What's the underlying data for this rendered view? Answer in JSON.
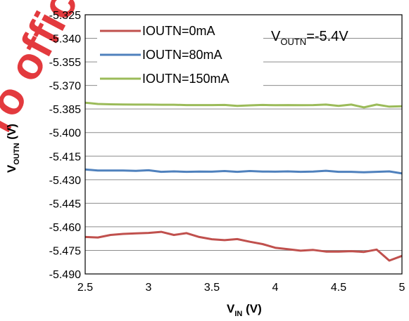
{
  "watermark": {
    "text": "Pro official"
  },
  "chart_data": {
    "type": "line",
    "xlabel": {
      "main": "V",
      "sub": "IN",
      "unit": " (V)"
    },
    "ylabel": {
      "main": "V",
      "sub": "OUTN",
      "unit": " (V)"
    },
    "xlim": [
      2.5,
      5
    ],
    "ylim": [
      -5.49,
      -5.325
    ],
    "xticks": [
      "2.5",
      "3",
      "3.5",
      "4",
      "4.5",
      "5"
    ],
    "yticks": [
      "-5.325",
      "-5.340",
      "-5.355",
      "-5.370",
      "-5.385",
      "-5.400",
      "-5.415",
      "-5.430",
      "-5.445",
      "-5.460",
      "-5.475",
      "-5.490"
    ],
    "grid": "horizontal",
    "legend_position": "top-left",
    "annotation": {
      "main": "V",
      "sub": "OUTN",
      "rest": "=-5.4V"
    },
    "series": [
      {
        "name": "IOUTN=0mA",
        "color": "#c0504d",
        "x": [
          2.5,
          2.6,
          2.7,
          2.8,
          2.9,
          3.0,
          3.1,
          3.2,
          3.3,
          3.4,
          3.5,
          3.6,
          3.7,
          3.8,
          3.9,
          4.0,
          4.1,
          4.2,
          4.3,
          4.4,
          4.5,
          4.6,
          4.7,
          4.8,
          4.9,
          5.0
        ],
        "y": [
          -5.4665,
          -5.4668,
          -5.4652,
          -5.4645,
          -5.4642,
          -5.4639,
          -5.4632,
          -5.4652,
          -5.464,
          -5.4665,
          -5.4679,
          -5.4685,
          -5.4678,
          -5.4695,
          -5.471,
          -5.4733,
          -5.4742,
          -5.4752,
          -5.4747,
          -5.4758,
          -5.4758,
          -5.4755,
          -5.476,
          -5.4745,
          -5.4815,
          -5.4785
        ]
      },
      {
        "name": "IOUTN=80mA",
        "color": "#4f81bd",
        "x": [
          2.5,
          2.6,
          2.7,
          2.8,
          2.9,
          3.0,
          3.1,
          3.2,
          3.3,
          3.4,
          3.5,
          3.6,
          3.7,
          3.8,
          3.9,
          4.0,
          4.1,
          4.2,
          4.3,
          4.4,
          4.5,
          4.6,
          4.7,
          4.8,
          4.9,
          5.0
        ],
        "y": [
          -5.4235,
          -5.4242,
          -5.4242,
          -5.4242,
          -5.4244,
          -5.424,
          -5.425,
          -5.4247,
          -5.425,
          -5.4248,
          -5.4249,
          -5.4245,
          -5.425,
          -5.4245,
          -5.4248,
          -5.4249,
          -5.4247,
          -5.425,
          -5.4248,
          -5.4243,
          -5.425,
          -5.425,
          -5.4253,
          -5.425,
          -5.4247,
          -5.426
        ]
      },
      {
        "name": "IOUTN=150mA",
        "color": "#9bbb59",
        "x": [
          2.5,
          2.6,
          2.7,
          2.8,
          2.9,
          3.0,
          3.1,
          3.2,
          3.3,
          3.4,
          3.5,
          3.6,
          3.7,
          3.8,
          3.9,
          4.0,
          4.1,
          4.2,
          4.3,
          4.4,
          4.5,
          4.6,
          4.7,
          4.8,
          4.9,
          5.0
        ],
        "y": [
          -5.381,
          -5.3818,
          -5.382,
          -5.3821,
          -5.3822,
          -5.3822,
          -5.3823,
          -5.3823,
          -5.3825,
          -5.3825,
          -5.3825,
          -5.3824,
          -5.383,
          -5.3827,
          -5.3824,
          -5.3826,
          -5.3825,
          -5.3826,
          -5.3825,
          -5.3822,
          -5.383,
          -5.3822,
          -5.384,
          -5.3822,
          -5.3835,
          -5.3832
        ]
      }
    ]
  }
}
